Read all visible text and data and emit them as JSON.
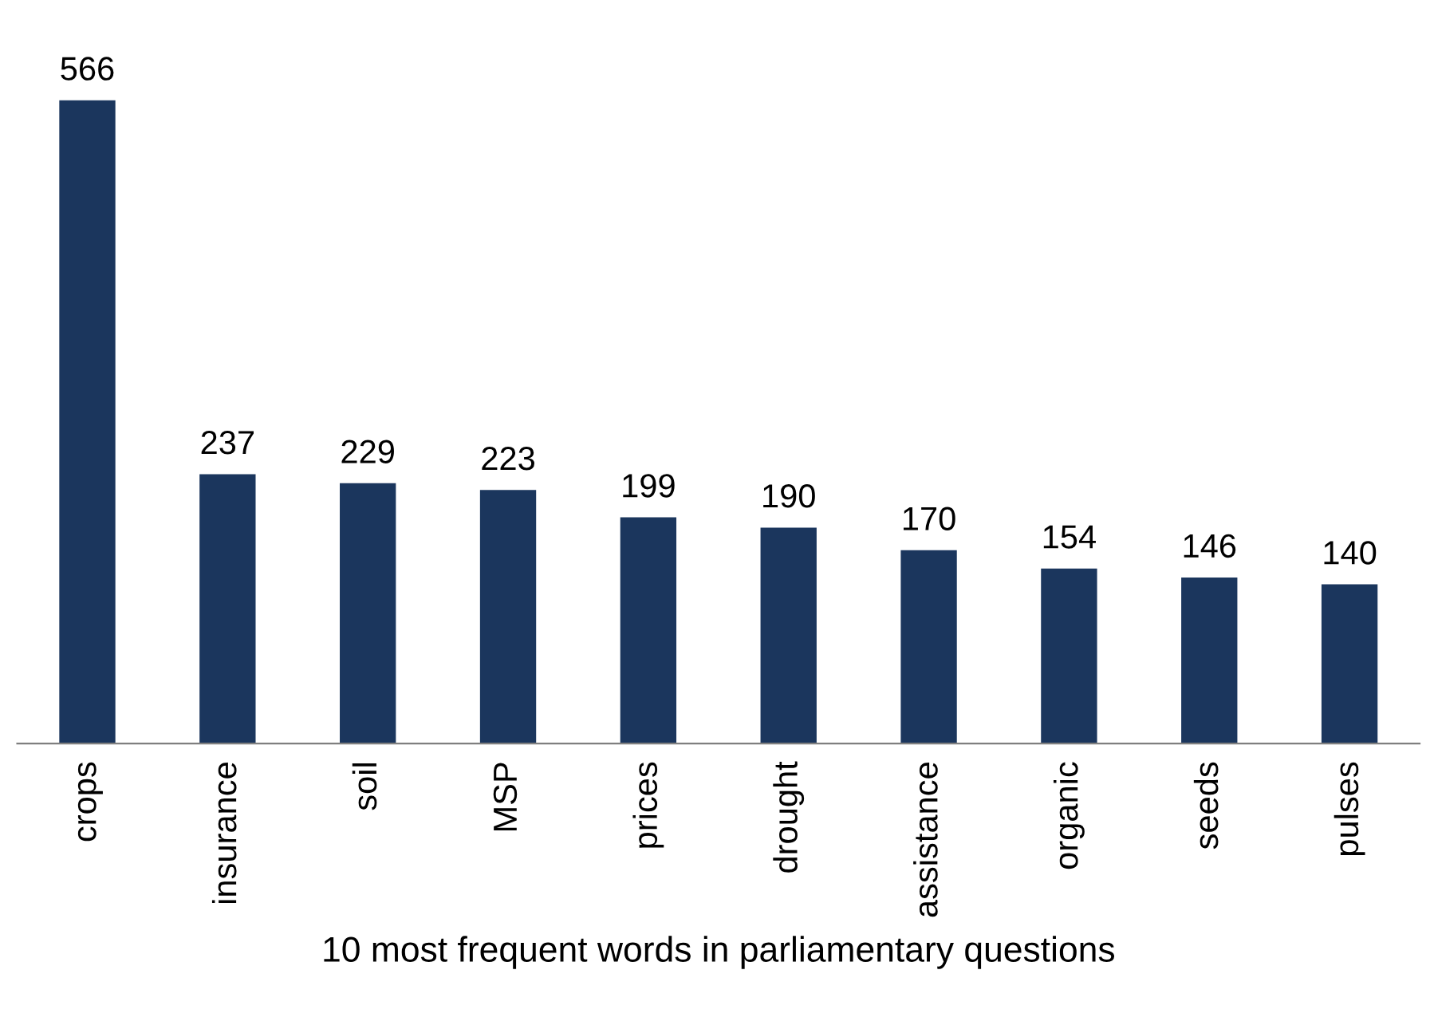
{
  "chart_data": {
    "type": "bar",
    "xlabel": "10 most frequent words in parliamentary questions",
    "categories": [
      "crops",
      "insurance",
      "soil",
      "MSP",
      "prices",
      "drought",
      "assistance",
      "organic",
      "seeds",
      "pulses"
    ],
    "values": [
      566,
      237,
      229,
      223,
      199,
      190,
      170,
      154,
      146,
      140
    ],
    "color": "#1b365d",
    "data_labels": true,
    "grid": false,
    "legend": false
  }
}
